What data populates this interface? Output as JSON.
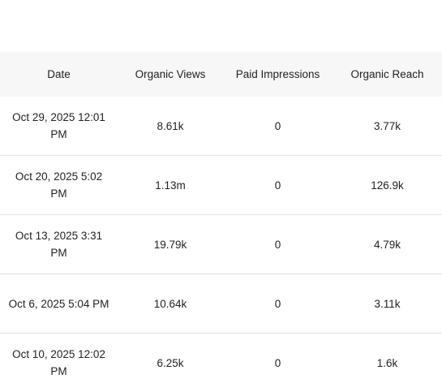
{
  "table": {
    "headers": {
      "date": "Date",
      "organic_views": "Organic Views",
      "paid_impressions": "Paid Impressions",
      "organic_reach": "Organic Reach"
    },
    "rows": [
      {
        "date": "Oct 29, 2025 12:01 PM",
        "organic_views": "8.61k",
        "paid_impressions": "0",
        "organic_reach": "3.77k"
      },
      {
        "date": "Oct 20, 2025 5:02 PM",
        "organic_views": "1.13m",
        "paid_impressions": "0",
        "organic_reach": "126.9k"
      },
      {
        "date": "Oct 13, 2025 3:31 PM",
        "organic_views": "19.79k",
        "paid_impressions": "0",
        "organic_reach": "4.79k"
      },
      {
        "date": "Oct 6, 2025 5:04 PM",
        "organic_views": "10.64k",
        "paid_impressions": "0",
        "organic_reach": "3.11k"
      },
      {
        "date": "Oct 10, 2025 12:02 PM",
        "organic_views": "6.25k",
        "paid_impressions": "0",
        "organic_reach": "1.6k"
      }
    ]
  }
}
